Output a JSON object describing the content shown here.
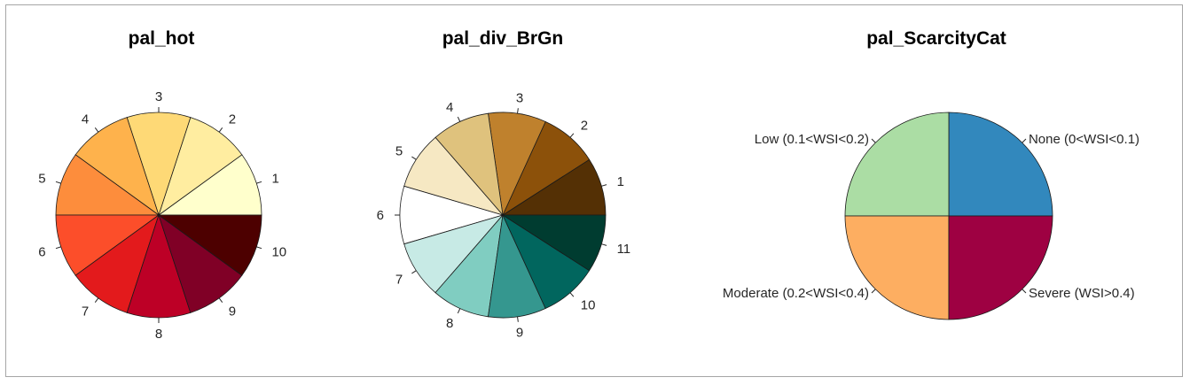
{
  "chart_data": [
    {
      "type": "pie",
      "title": "pal_hot",
      "labels": [
        "1",
        "2",
        "3",
        "4",
        "5",
        "6",
        "7",
        "8",
        "9",
        "10"
      ],
      "values": [
        1,
        1,
        1,
        1,
        1,
        1,
        1,
        1,
        1,
        1
      ],
      "colors": [
        "#FFFFCC",
        "#FFEDA0",
        "#FED976",
        "#FEB24C",
        "#FD8D3C",
        "#FC4E2A",
        "#E31A1C",
        "#BD0026",
        "#800026",
        "#4D0000"
      ]
    },
    {
      "type": "pie",
      "title": "pal_div_BrGn",
      "labels": [
        "1",
        "2",
        "3",
        "4",
        "5",
        "6",
        "7",
        "8",
        "9",
        "10",
        "11"
      ],
      "values": [
        1,
        1,
        1,
        1,
        1,
        1,
        1,
        1,
        1,
        1,
        1
      ],
      "colors": [
        "#543005",
        "#8C510A",
        "#BF812D",
        "#DFC27D",
        "#F6E8C3",
        "#FFFFFF",
        "#C7EAE5",
        "#80CDC1",
        "#35978F",
        "#01665E",
        "#003C30"
      ]
    },
    {
      "type": "pie",
      "title": "pal_ScarcityCat",
      "labels": [
        "None (0<WSI<0.1)",
        "Low (0.1<WSI<0.2)",
        "Moderate (0.2<WSI<0.4)",
        "Severe (WSI>0.4)"
      ],
      "values": [
        1,
        1,
        1,
        1
      ],
      "colors": [
        "#3288BD",
        "#ABDDA4",
        "#FDAE61",
        "#9E0142"
      ],
      "slice_order": [
        "None (0<WSI<0.1)",
        "Low (0.1<WSI<0.2)",
        "Moderate (0.2<WSI<0.4)",
        "Severe (WSI>0.4)"
      ]
    }
  ]
}
